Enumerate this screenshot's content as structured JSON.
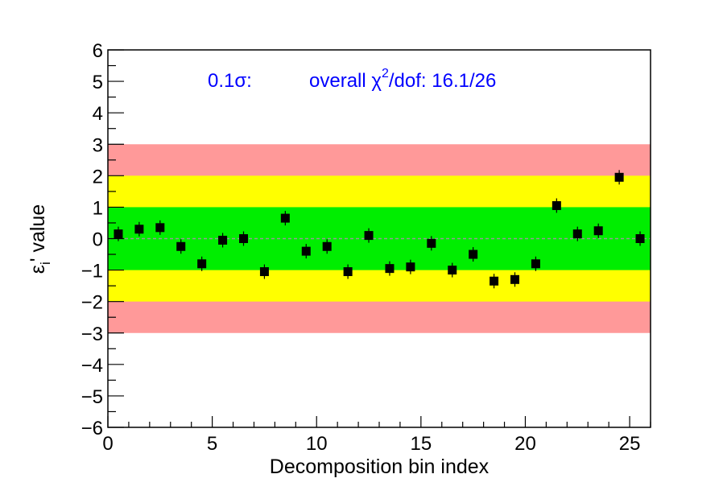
{
  "chart_data": {
    "type": "scatter",
    "xlabel": "Decomposition bin index",
    "ylabel_main": "ε",
    "ylabel_sub": "i",
    "ylabel_rest": "' value",
    "xlim": [
      0,
      26
    ],
    "ylim": [
      -6,
      6
    ],
    "x_ticks": [
      "0",
      "5",
      "10",
      "15",
      "20",
      "25"
    ],
    "y_ticks": [
      "−6",
      "−5",
      "−4",
      "−3",
      "−2",
      "−1",
      "0",
      "1",
      "2",
      "3",
      "4",
      "5",
      "6"
    ],
    "bands": [
      {
        "from": -3,
        "to": 3,
        "color": "#ff9999"
      },
      {
        "from": -2,
        "to": 2,
        "color": "#ffff00"
      },
      {
        "from": -1,
        "to": 1,
        "color": "#00ee00"
      }
    ],
    "zero_line": true,
    "marker_color": "#000000",
    "annotation": {
      "sigma_label": "0.1σ:",
      "chi_prefix": "overall χ",
      "chi_sup": "2",
      "chi_suffix": "/dof: 16.1/26"
    },
    "points": [
      {
        "x": 0.5,
        "y": 0.15
      },
      {
        "x": 1.5,
        "y": 0.3
      },
      {
        "x": 2.5,
        "y": 0.35
      },
      {
        "x": 3.5,
        "y": -0.25
      },
      {
        "x": 4.5,
        "y": -0.8
      },
      {
        "x": 5.5,
        "y": -0.05
      },
      {
        "x": 6.5,
        "y": 0.0
      },
      {
        "x": 7.5,
        "y": -1.05
      },
      {
        "x": 8.5,
        "y": 0.65
      },
      {
        "x": 9.5,
        "y": -0.4
      },
      {
        "x": 10.5,
        "y": -0.25
      },
      {
        "x": 11.5,
        "y": -1.05
      },
      {
        "x": 12.5,
        "y": 0.1
      },
      {
        "x": 13.5,
        "y": -0.95
      },
      {
        "x": 14.5,
        "y": -0.9
      },
      {
        "x": 15.5,
        "y": -0.15
      },
      {
        "x": 16.5,
        "y": -1.0
      },
      {
        "x": 17.5,
        "y": -0.5
      },
      {
        "x": 18.5,
        "y": -1.35
      },
      {
        "x": 19.5,
        "y": -1.3
      },
      {
        "x": 20.5,
        "y": -0.8
      },
      {
        "x": 21.5,
        "y": 1.05
      },
      {
        "x": 22.5,
        "y": 0.15
      },
      {
        "x": 23.5,
        "y": 0.25
      },
      {
        "x": 24.5,
        "y": 1.95
      },
      {
        "x": 25.5,
        "y": 0.0
      }
    ]
  }
}
